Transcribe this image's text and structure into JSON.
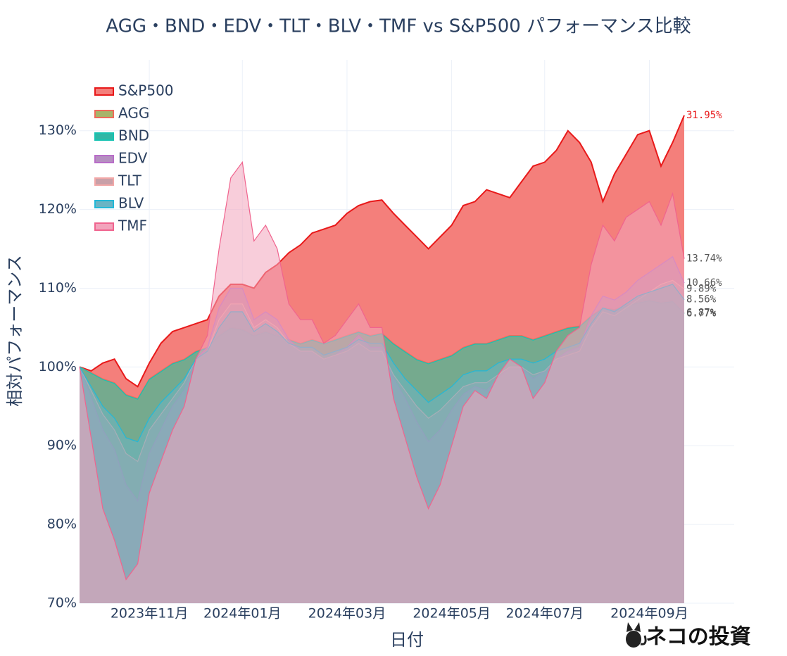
{
  "chart_data": {
    "type": "area",
    "title": "AGG・BND・EDV・TLT・BLV・TMF vs S&P500 パフォーマンス比較",
    "x_label": "日付",
    "y_label": "相対パフォーマンス",
    "watermark": "ネコの投資",
    "categories": [
      null,
      null,
      null,
      null,
      null,
      null,
      "2023年11月",
      null,
      null,
      null,
      null,
      null,
      null,
      null,
      "2024年01月",
      null,
      null,
      null,
      null,
      null,
      null,
      null,
      null,
      "2024年03月",
      null,
      null,
      null,
      null,
      null,
      null,
      null,
      null,
      "2024年05月",
      null,
      null,
      null,
      null,
      null,
      null,
      null,
      "2024年07月",
      null,
      null,
      null,
      null,
      null,
      null,
      null,
      null,
      "2024年09月",
      null,
      null,
      null
    ],
    "ylim": [
      70,
      139
    ],
    "yticks": [
      {
        "value": 70,
        "label": "70%"
      },
      {
        "value": 80,
        "label": "80%"
      },
      {
        "value": 90,
        "label": "90%"
      },
      {
        "value": 100,
        "label": "100%"
      },
      {
        "value": 110,
        "label": "110%"
      },
      {
        "value": 120,
        "label": "120%"
      },
      {
        "value": 130,
        "label": "130%"
      }
    ],
    "grid": true,
    "legend": "top-left",
    "series": [
      {
        "name": "S&P500",
        "color": "#e8191a",
        "fill": "#f47f7b",
        "values": [
          100,
          99.5,
          100.5,
          101,
          98.5,
          97.5,
          100.5,
          103,
          104.5,
          105,
          105.5,
          106,
          109,
          110.5,
          110.5,
          110,
          112,
          113,
          114.5,
          115.5,
          117,
          117.5,
          118,
          119.5,
          120.5,
          121,
          121.2,
          119.5,
          118,
          116.5,
          115,
          116.5,
          118,
          120.5,
          121,
          122.5,
          122,
          121.5,
          123.5,
          125.5,
          126,
          127.5,
          130,
          128.5,
          126,
          121,
          124.5,
          127,
          129.5,
          130,
          125.5,
          128.5,
          131.95
        ],
        "value_labels": [
          null,
          null,
          null,
          null,
          null,
          null,
          null,
          null,
          null,
          null,
          null,
          null,
          null,
          null,
          null,
          null,
          null,
          null,
          null,
          null,
          null,
          null,
          null,
          null,
          null,
          null,
          null,
          null,
          null,
          null,
          null,
          null,
          null,
          null,
          null,
          null,
          null,
          null,
          null,
          null,
          null,
          null,
          null,
          null,
          null,
          null,
          null,
          null,
          null,
          null,
          null,
          null,
          "31.95%"
        ]
      },
      {
        "name": "AGG",
        "color": "#ef6a5a",
        "fill": "#a8b46a",
        "values": [
          100,
          99.3,
          98.5,
          98,
          96.5,
          96,
          98.5,
          99.5,
          100.5,
          101,
          102,
          102.5,
          104,
          105,
          104.8,
          104,
          104.5,
          104,
          103.5,
          103,
          103.5,
          103,
          103.5,
          104,
          104.5,
          104,
          104.3,
          103,
          102,
          101,
          100.5,
          101,
          101.5,
          102.5,
          103,
          103,
          103.5,
          104,
          104,
          103.5,
          104,
          104.5,
          105,
          105.2,
          106.5,
          107.5,
          107.3,
          107.8,
          108.2,
          108.5,
          108.2,
          108.4,
          106.87
        ],
        "value_labels": [
          null,
          null,
          null,
          null,
          null,
          null,
          null,
          null,
          null,
          null,
          null,
          null,
          null,
          null,
          null,
          null,
          null,
          null,
          null,
          null,
          null,
          null,
          null,
          null,
          null,
          null,
          null,
          null,
          null,
          null,
          null,
          null,
          null,
          null,
          null,
          null,
          null,
          null,
          null,
          null,
          null,
          null,
          null,
          null,
          null,
          null,
          null,
          null,
          null,
          null,
          null,
          null,
          "6.87%"
        ]
      },
      {
        "name": "BND",
        "color": "#17c3b2",
        "fill": "#2fb7a6",
        "values": [
          100,
          99.2,
          98.4,
          97.9,
          96.4,
          95.9,
          98.4,
          99.4,
          100.4,
          100.9,
          101.9,
          102.4,
          103.9,
          104.9,
          104.7,
          103.9,
          104.4,
          103.9,
          103.4,
          102.9,
          103.4,
          102.9,
          103.4,
          103.9,
          104.4,
          103.9,
          104.2,
          102.9,
          101.9,
          100.9,
          100.4,
          100.9,
          101.4,
          102.4,
          102.9,
          102.9,
          103.4,
          103.9,
          103.9,
          103.4,
          103.9,
          104.4,
          104.9,
          105.1,
          106.4,
          107.4,
          107.2,
          107.7,
          108.1,
          108.4,
          108.1,
          108.3,
          106.77
        ],
        "value_labels": [
          null,
          null,
          null,
          null,
          null,
          null,
          null,
          null,
          null,
          null,
          null,
          null,
          null,
          null,
          null,
          null,
          null,
          null,
          null,
          null,
          null,
          null,
          null,
          null,
          null,
          null,
          null,
          null,
          null,
          null,
          null,
          null,
          null,
          null,
          null,
          null,
          null,
          null,
          null,
          null,
          null,
          null,
          null,
          null,
          null,
          null,
          null,
          null,
          null,
          null,
          null,
          null,
          "6.77%"
        ]
      },
      {
        "name": "EDV",
        "color": "#b86cc8",
        "fill": "#b58fc0",
        "values": [
          100,
          96,
          92,
          89.5,
          85,
          83,
          89,
          92,
          95,
          97,
          101,
          102.5,
          107.5,
          110,
          110,
          106,
          107,
          106,
          103.5,
          102,
          102,
          101,
          101.5,
          102.5,
          104,
          102.5,
          102.5,
          98.5,
          96,
          93,
          90.5,
          92,
          94.5,
          96.5,
          97.5,
          97,
          98.5,
          100,
          100,
          98.5,
          99.5,
          101,
          102,
          102.5,
          106.5,
          109,
          108.5,
          109.5,
          111,
          112,
          113,
          114,
          110.66
        ],
        "value_labels": [
          null,
          null,
          null,
          null,
          null,
          null,
          null,
          null,
          null,
          null,
          null,
          null,
          null,
          null,
          null,
          null,
          null,
          null,
          null,
          null,
          null,
          null,
          null,
          null,
          null,
          null,
          null,
          null,
          null,
          null,
          null,
          null,
          null,
          null,
          null,
          null,
          null,
          null,
          null,
          null,
          null,
          null,
          null,
          null,
          null,
          null,
          null,
          null,
          null,
          null,
          null,
          null,
          "10.66%"
        ]
      },
      {
        "name": "TLT",
        "color": "#f2a7a7",
        "fill": "#c9a0a8",
        "values": [
          100,
          97,
          94,
          92,
          89,
          88,
          92,
          94,
          96,
          98,
          101,
          102,
          106,
          108,
          108,
          105,
          106,
          105,
          103,
          102,
          102,
          101,
          101.5,
          102,
          103,
          102,
          102,
          99,
          97,
          95,
          93.5,
          94.5,
          96,
          97.5,
          98,
          98,
          99,
          100,
          100,
          99,
          99.5,
          101,
          101.5,
          102,
          105,
          107,
          106.5,
          107.5,
          108.5,
          109.5,
          110.5,
          111,
          109.89
        ],
        "value_labels": [
          null,
          null,
          null,
          null,
          null,
          null,
          null,
          null,
          null,
          null,
          null,
          null,
          null,
          null,
          null,
          null,
          null,
          null,
          null,
          null,
          null,
          null,
          null,
          null,
          null,
          null,
          null,
          null,
          null,
          null,
          null,
          null,
          null,
          null,
          null,
          null,
          null,
          null,
          null,
          null,
          null,
          null,
          null,
          null,
          null,
          null,
          null,
          null,
          null,
          null,
          null,
          null,
          "9.89%"
        ]
      },
      {
        "name": "BLV",
        "color": "#22b8d8",
        "fill": "#6ab4c4",
        "values": [
          100,
          97.5,
          95,
          93.5,
          91,
          90.5,
          93.5,
          95.5,
          97,
          98.5,
          101,
          102,
          105,
          107,
          107,
          104.5,
          105.5,
          104.5,
          103,
          102.5,
          102.5,
          101.5,
          102,
          102.5,
          103.5,
          103,
          103,
          100.5,
          98.5,
          97,
          95.5,
          96.5,
          97.5,
          99,
          99.5,
          99.5,
          100.5,
          101,
          101,
          100.5,
          101,
          102,
          102.5,
          103,
          105.5,
          107.5,
          107,
          108,
          109,
          109.5,
          110,
          110.5,
          108.56
        ],
        "value_labels": [
          null,
          null,
          null,
          null,
          null,
          null,
          null,
          null,
          null,
          null,
          null,
          null,
          null,
          null,
          null,
          null,
          null,
          null,
          null,
          null,
          null,
          null,
          null,
          null,
          null,
          null,
          null,
          null,
          null,
          null,
          null,
          null,
          null,
          null,
          null,
          null,
          null,
          null,
          null,
          null,
          null,
          null,
          null,
          null,
          null,
          null,
          null,
          null,
          null,
          null,
          null,
          null,
          "8.56%"
        ]
      },
      {
        "name": "TMF",
        "color": "#f0648e",
        "fill": "#f2a4bc",
        "values": [
          100,
          91,
          82,
          78,
          73,
          75,
          84,
          88,
          92,
          95,
          101,
          104,
          115,
          124,
          126,
          116,
          118,
          115,
          108,
          106,
          106,
          103,
          104,
          106,
          108,
          105,
          105,
          96,
          91,
          86,
          82,
          85,
          90,
          95,
          97,
          96,
          99,
          101,
          100,
          96,
          98,
          102,
          104,
          105,
          113,
          118,
          116,
          119,
          120,
          121,
          118,
          122,
          113.74
        ],
        "value_labels": [
          null,
          null,
          null,
          null,
          null,
          null,
          null,
          null,
          null,
          null,
          null,
          null,
          null,
          null,
          null,
          null,
          null,
          null,
          null,
          null,
          null,
          null,
          null,
          null,
          null,
          null,
          null,
          null,
          null,
          null,
          null,
          null,
          null,
          null,
          null,
          null,
          null,
          null,
          null,
          null,
          null,
          null,
          null,
          null,
          null,
          null,
          null,
          null,
          null,
          null,
          null,
          null,
          "13.74%"
        ]
      }
    ]
  }
}
